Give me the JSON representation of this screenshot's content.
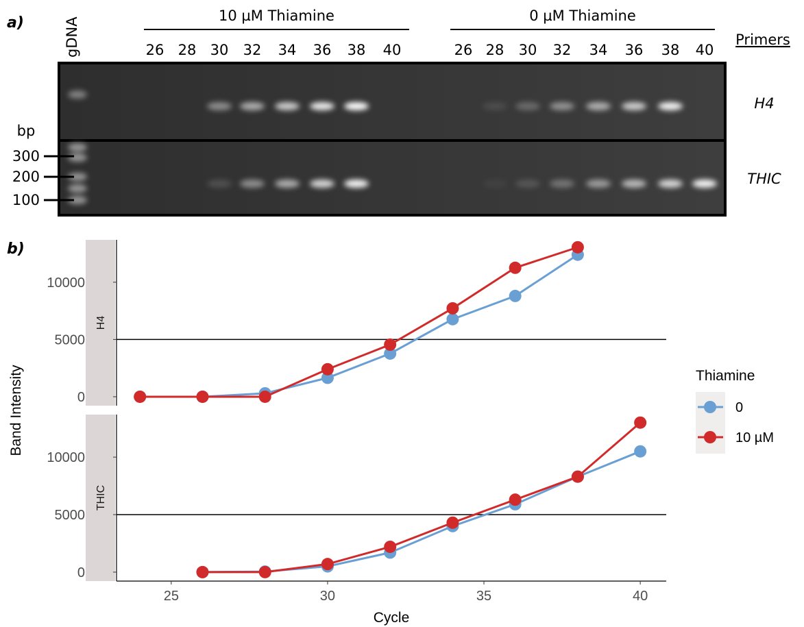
{
  "panel_labels": [
    "a)",
    "b)"
  ],
  "gel": {
    "ladder_lane": "gDNA",
    "groups": [
      {
        "label": "10 µM Thiamine",
        "lanes": [
          "26",
          "28",
          "30",
          "32",
          "34",
          "36",
          "38",
          "40"
        ]
      },
      {
        "label": "0 µM Thiamine",
        "lanes": [
          "26",
          "28",
          "30",
          "32",
          "34",
          "36",
          "38",
          "40"
        ]
      }
    ],
    "primers_label": "Primers",
    "rows": [
      "H4",
      "THIC"
    ],
    "size_unit": "bp",
    "ladder_marks": [
      "300",
      "200",
      "100"
    ]
  },
  "chart_data": [
    {
      "type": "line",
      "facet": "H4",
      "ylabel": "Band Intensity",
      "legend_title": "Thiamine",
      "x": [
        24,
        26,
        28,
        30,
        32,
        34,
        36,
        38
      ],
      "series": [
        {
          "name": "0",
          "color": "#6a9fd4",
          "values": [
            0,
            0,
            300,
            1650,
            3770,
            6770,
            8800,
            12400
          ]
        },
        {
          "name": "10 µM",
          "color": "#d02a2a",
          "values": [
            0,
            0,
            0,
            2400,
            4550,
            7720,
            11260,
            13050
          ]
        }
      ],
      "xlim": [
        23.25,
        40.83
      ],
      "ylim": [
        -780,
        13700
      ],
      "yticks": [
        0,
        5000,
        10000
      ],
      "hline": 5000
    },
    {
      "type": "line",
      "facet": "THIC",
      "xlabel": "Cycle",
      "x": [
        26,
        28,
        30,
        32,
        34,
        36,
        38,
        40
      ],
      "series": [
        {
          "color": "#6a9fd4",
          "values": [
            0,
            50,
            500,
            1700,
            4000,
            5900,
            8300,
            10500
          ]
        },
        {
          "color": "#d02a2a",
          "values": [
            0,
            0,
            700,
            2200,
            4300,
            6300,
            8300,
            13000
          ]
        }
      ],
      "xlim": [
        23.25,
        40.83
      ],
      "ylim": [
        -780,
        13700
      ],
      "xticks": [
        25,
        30,
        35,
        40
      ],
      "yticks": [
        0,
        5000,
        10000
      ],
      "hline": 5000
    }
  ]
}
